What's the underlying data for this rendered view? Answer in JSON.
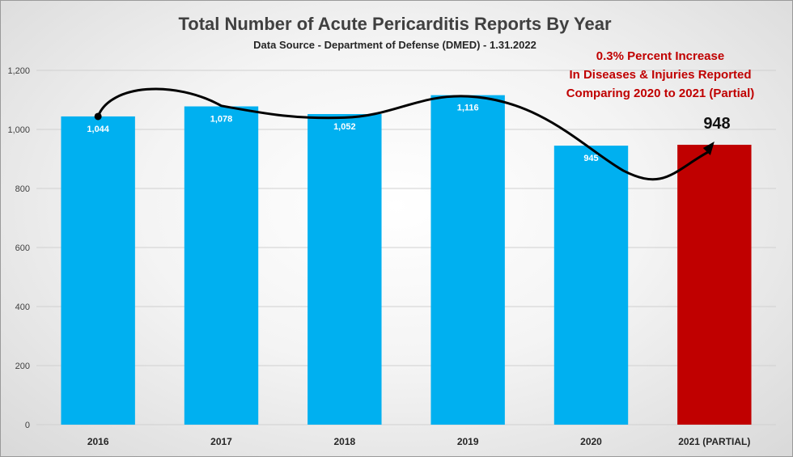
{
  "chart_data": {
    "type": "bar",
    "title": "Total Number of Acute Pericarditis Reports By Year",
    "subtitle": "Data Source - Department of Defense (DMED) - 1.31.2022",
    "categories": [
      "2016",
      "2017",
      "2018",
      "2019",
      "2020",
      "2021 (PARTIAL)"
    ],
    "values": [
      1044,
      1078,
      1052,
      1116,
      945,
      948
    ],
    "data_labels": [
      "1,044",
      "1,078",
      "1,052",
      "1,116",
      "945",
      ""
    ],
    "ylim": [
      0,
      1200
    ],
    "yticks": [
      0,
      200,
      400,
      600,
      800,
      1000,
      1200
    ],
    "ytick_labels": [
      "0",
      "200",
      "400",
      "600",
      "800",
      "1,000",
      "1,200"
    ],
    "grid": true,
    "colors": {
      "bar": "#00b0f0",
      "highlight_bar": "#c00000",
      "annotation": "#c00000"
    },
    "highlight_index": 5,
    "annotation": {
      "lines": [
        "0.3% Percent Increase",
        "In Diseases & Injuries Reported",
        "Comparing 2020 to 2021 (Partial)"
      ],
      "highlight_value": "948"
    }
  }
}
